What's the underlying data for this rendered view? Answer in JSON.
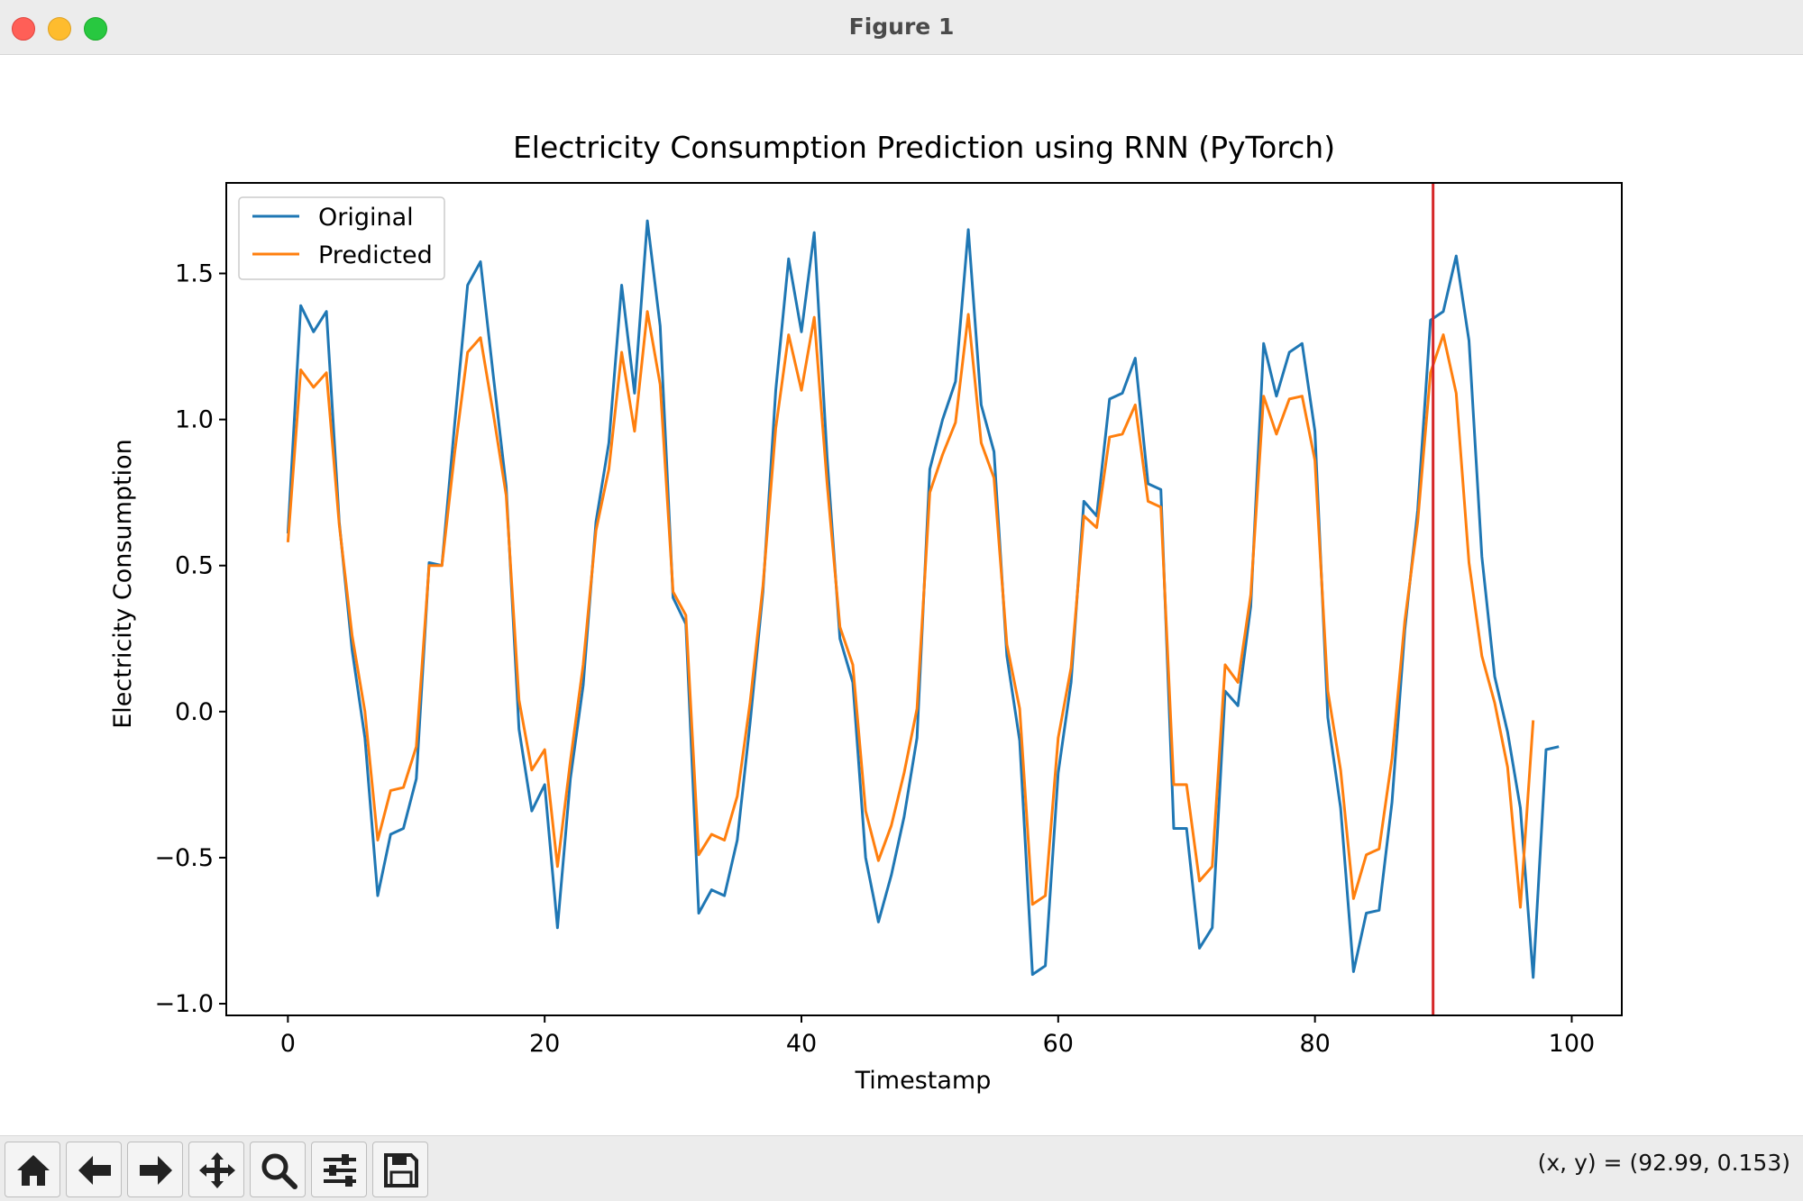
{
  "window": {
    "title": "Figure 1"
  },
  "toolbar": {
    "buttons": [
      {
        "name": "home-button",
        "icon": "home-icon"
      },
      {
        "name": "back-button",
        "icon": "arrow-left-icon"
      },
      {
        "name": "forward-button",
        "icon": "arrow-right-icon"
      },
      {
        "name": "pan-button",
        "icon": "move-icon"
      },
      {
        "name": "zoom-button",
        "icon": "magnifier-icon"
      },
      {
        "name": "configure-subplots-button",
        "icon": "sliders-icon"
      },
      {
        "name": "save-button",
        "icon": "floppy-disk-icon"
      }
    ]
  },
  "status": {
    "coords": "(x, y) = (92.99, 0.153)"
  },
  "chart_data": {
    "type": "line",
    "title": "Electricity Consumption Prediction using RNN (PyTorch)",
    "xlabel": "Timestamp",
    "ylabel": "Electricity Consumption",
    "xlim": [
      -4.8,
      103.9
    ],
    "ylim": [
      -1.04,
      1.81
    ],
    "xticks": [
      0,
      20,
      40,
      60,
      80,
      100
    ],
    "xtick_labels": [
      "0",
      "20",
      "40",
      "60",
      "80",
      "100"
    ],
    "yticks": [
      -1.0,
      -0.5,
      0.0,
      0.5,
      1.0,
      1.5
    ],
    "ytick_labels": [
      "−1.0",
      "−0.5",
      "0.0",
      "0.5",
      "1.0",
      "1.5"
    ],
    "legend": {
      "position": "upper-left",
      "entries": [
        "Original",
        "Predicted"
      ]
    },
    "grid": false,
    "vline": {
      "x": 89.2,
      "color": "#d62728"
    },
    "series": [
      {
        "name": "Original",
        "color": "#1f77b4",
        "x_start": 0,
        "values": [
          0.61,
          1.39,
          1.3,
          1.37,
          0.65,
          0.21,
          -0.09,
          -0.63,
          -0.42,
          -0.4,
          -0.23,
          0.51,
          0.5,
          0.99,
          1.46,
          1.54,
          1.15,
          0.77,
          -0.06,
          -0.34,
          -0.25,
          -0.74,
          -0.23,
          0.09,
          0.65,
          0.92,
          1.46,
          1.09,
          1.68,
          1.32,
          0.39,
          0.3,
          -0.69,
          -0.61,
          -0.63,
          -0.44,
          -0.04,
          0.41,
          1.1,
          1.55,
          1.3,
          1.64,
          0.87,
          0.25,
          0.1,
          -0.5,
          -0.72,
          -0.56,
          -0.36,
          -0.09,
          0.83,
          1.0,
          1.13,
          1.65,
          1.05,
          0.89,
          0.19,
          -0.1,
          -0.9,
          -0.87,
          -0.21,
          0.1,
          0.72,
          0.67,
          1.07,
          1.09,
          1.21,
          0.78,
          0.76,
          -0.4,
          -0.4,
          -0.81,
          -0.74,
          0.07,
          0.02,
          0.36,
          1.26,
          1.08,
          1.23,
          1.26,
          0.96,
          -0.02,
          -0.33,
          -0.89,
          -0.69,
          -0.68,
          -0.31,
          0.28,
          0.69,
          1.34,
          1.37,
          1.56,
          1.27,
          0.53,
          0.12,
          -0.07,
          -0.33,
          -0.91,
          -0.13,
          -0.12
        ]
      },
      {
        "name": "Predicted",
        "color": "#ff7f0e",
        "x_start": 0,
        "values": [
          0.58,
          1.17,
          1.11,
          1.16,
          0.64,
          0.26,
          0.0,
          -0.44,
          -0.27,
          -0.26,
          -0.12,
          0.5,
          0.5,
          0.89,
          1.23,
          1.28,
          1.02,
          0.74,
          0.04,
          -0.2,
          -0.13,
          -0.53,
          -0.17,
          0.16,
          0.62,
          0.83,
          1.23,
          0.96,
          1.37,
          1.12,
          0.41,
          0.33,
          -0.49,
          -0.42,
          -0.44,
          -0.29,
          0.03,
          0.43,
          0.97,
          1.29,
          1.1,
          1.35,
          0.78,
          0.29,
          0.16,
          -0.34,
          -0.51,
          -0.39,
          -0.21,
          0.01,
          0.75,
          0.88,
          0.99,
          1.36,
          0.92,
          0.8,
          0.23,
          0.01,
          -0.66,
          -0.63,
          -0.09,
          0.15,
          0.67,
          0.63,
          0.94,
          0.95,
          1.05,
          0.72,
          0.7,
          -0.25,
          -0.25,
          -0.58,
          -0.53,
          0.16,
          0.1,
          0.4,
          1.08,
          0.95,
          1.07,
          1.08,
          0.86,
          0.07,
          -0.2,
          -0.64,
          -0.49,
          -0.47,
          -0.16,
          0.31,
          0.65,
          1.16,
          1.29,
          1.09,
          0.51,
          0.19,
          0.03,
          -0.19,
          -0.67,
          -0.03
        ]
      }
    ]
  }
}
